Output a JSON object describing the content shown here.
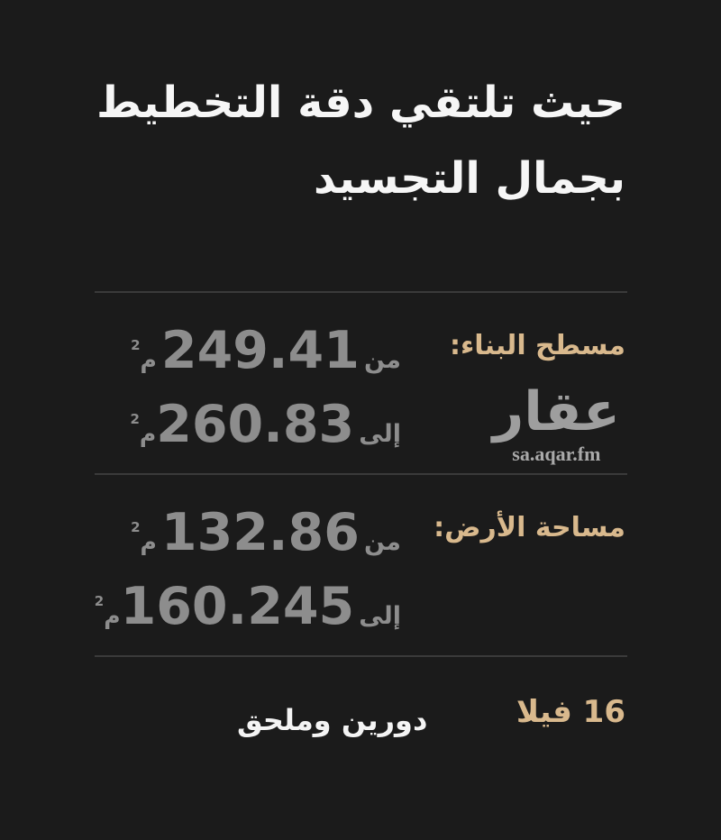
{
  "poster": {
    "title": {
      "line1": "حيث تلتقي دقة التخطيط",
      "line2": "بجمال التجسيد"
    },
    "sections": {
      "building": {
        "label": "مسطح البناء:",
        "from_label": "من",
        "from_value": "249.41",
        "to_label": "إلى",
        "to_value": "260.83",
        "unit": "م",
        "unit_exponent": "2"
      },
      "land": {
        "label": "مساحة الأرض:",
        "from_label": "من",
        "from_value": "132.86",
        "to_label": "إلى",
        "to_value": "160.245",
        "unit": "م",
        "unit_exponent": "2"
      }
    },
    "logo": {
      "wordmark": "عقار",
      "website": "sa.aqar.fm"
    },
    "footer": {
      "villa_count": "16 فيلا",
      "floors_description": "دورين وملحق"
    },
    "colors": {
      "background": "#1b1b1b",
      "gold_accent": "#d9b98d",
      "value_gray": "#8d8d8d",
      "title_white": "#f6f6f6",
      "divider_gray": "#3a3a3a",
      "logo_gray": "#9e9e9e"
    }
  }
}
